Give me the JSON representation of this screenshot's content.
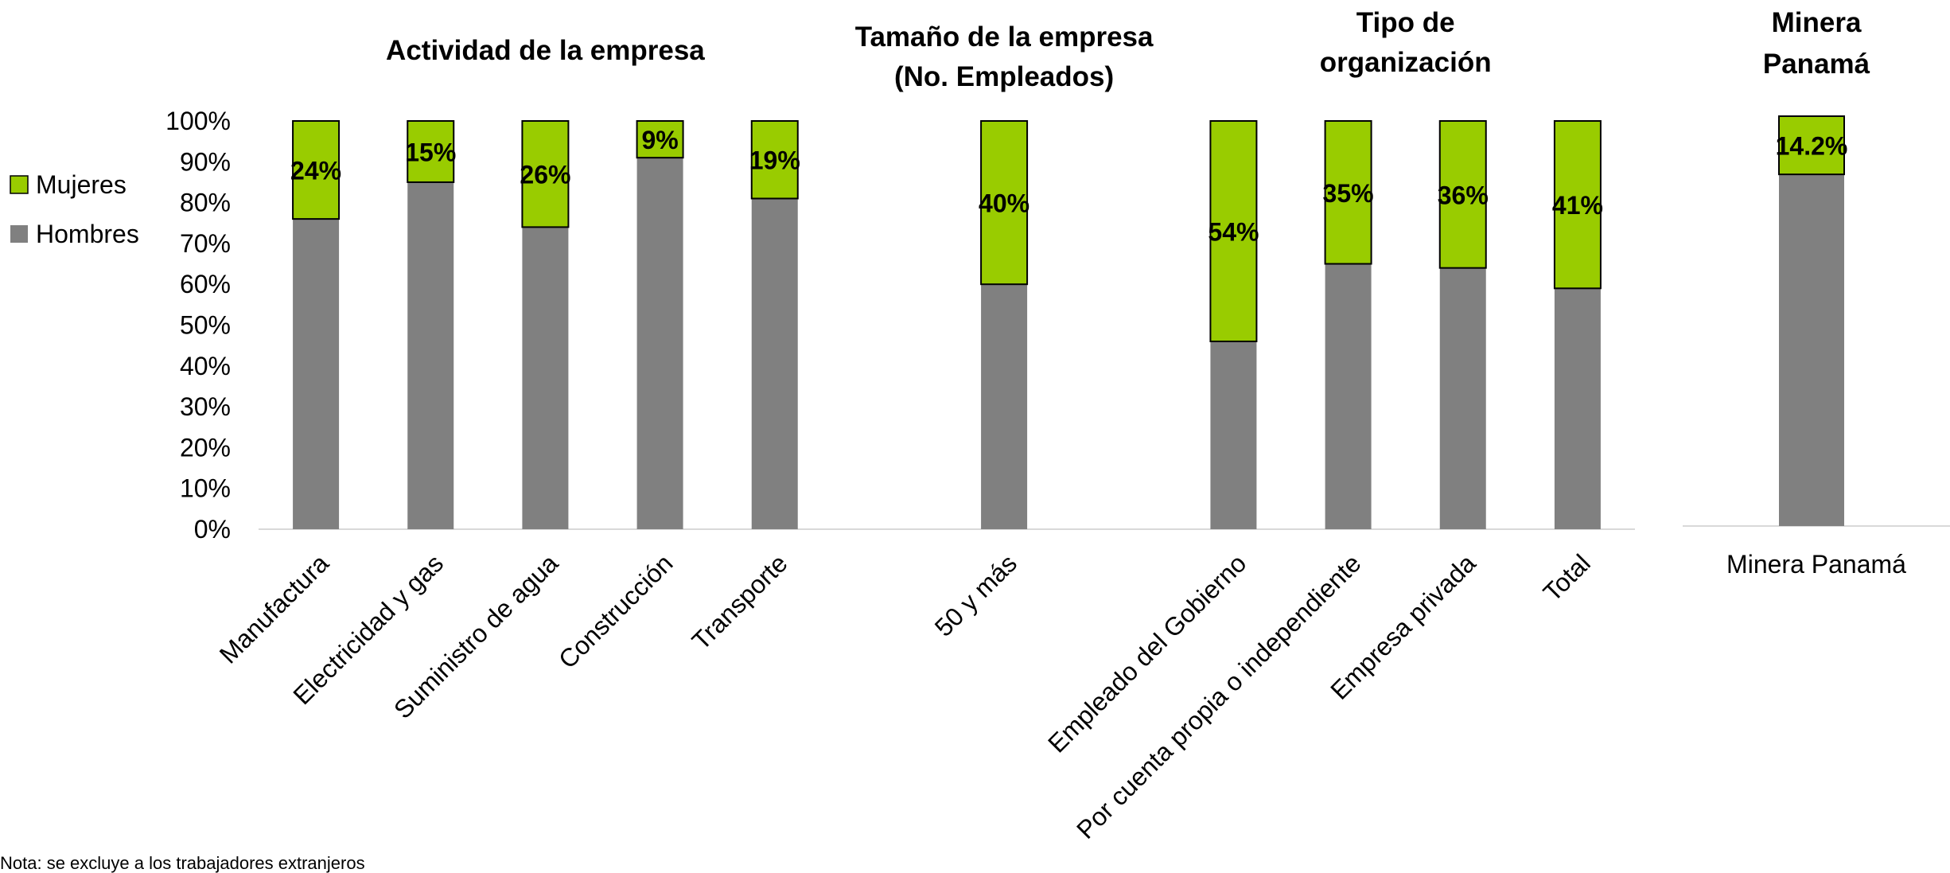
{
  "chart_data": {
    "type": "bar",
    "stacked": true,
    "percent_scale": true,
    "yticks": [
      "0%",
      "10%",
      "20%",
      "30%",
      "40%",
      "50%",
      "60%",
      "70%",
      "80%",
      "90%",
      "100%"
    ],
    "ylim": [
      0,
      100
    ],
    "legend": {
      "position": "left",
      "entries": [
        {
          "name": "Mujeres",
          "color": "#99cc00"
        },
        {
          "name": "Hombres",
          "color": "#808080"
        }
      ]
    },
    "series": [
      {
        "name": "Hombres",
        "color": "#808080"
      },
      {
        "name": "Mujeres",
        "color": "#99cc00"
      }
    ],
    "groups": [
      {
        "title": [
          "Actividad de la empresa"
        ],
        "categories": [
          "Manufactura",
          "Electricidad y gas",
          "Suministro de agua",
          "Construcción",
          "Transporte"
        ]
      },
      {
        "title": [
          "Tamaño de la empresa",
          "(No. Empleados)"
        ],
        "categories": [
          "50 y más"
        ]
      },
      {
        "title": [
          "Tipo de",
          "organización"
        ],
        "categories": [
          "Empleado del Gobierno",
          "Por cuenta propia o independiente",
          "Empresa privada",
          "Total"
        ]
      }
    ],
    "bars": [
      {
        "category": "Manufactura",
        "hombres": 76,
        "mujeres": 24,
        "label": "24%"
      },
      {
        "category": "Electricidad y gas",
        "hombres": 85,
        "mujeres": 15,
        "label": "15%"
      },
      {
        "category": "Suministro de agua",
        "hombres": 74,
        "mujeres": 26,
        "label": "26%"
      },
      {
        "category": "Construcción",
        "hombres": 91,
        "mujeres": 9,
        "label": "9%"
      },
      {
        "category": "Transporte",
        "hombres": 81,
        "mujeres": 19,
        "label": "19%"
      },
      {
        "category": "50 y más",
        "hombres": 60,
        "mujeres": 40,
        "label": "40%"
      },
      {
        "category": "Empleado del Gobierno",
        "hombres": 46,
        "mujeres": 54,
        "label": "54%"
      },
      {
        "category": "Por cuenta propia o independiente",
        "hombres": 65,
        "mujeres": 35,
        "label": "35%"
      },
      {
        "category": "Empresa privada",
        "hombres": 64,
        "mujeres": 36,
        "label": "36%"
      },
      {
        "category": "Total",
        "hombres": 59,
        "mujeres": 41,
        "label": "41%"
      }
    ],
    "side_chart": {
      "title": [
        "Minera",
        "Panamá"
      ],
      "category": "Minera Panamá",
      "hombres": 85.8,
      "mujeres": 14.2,
      "label": "14.2%"
    }
  },
  "note": "Nota: se excluye a los trabajadores extranjeros"
}
